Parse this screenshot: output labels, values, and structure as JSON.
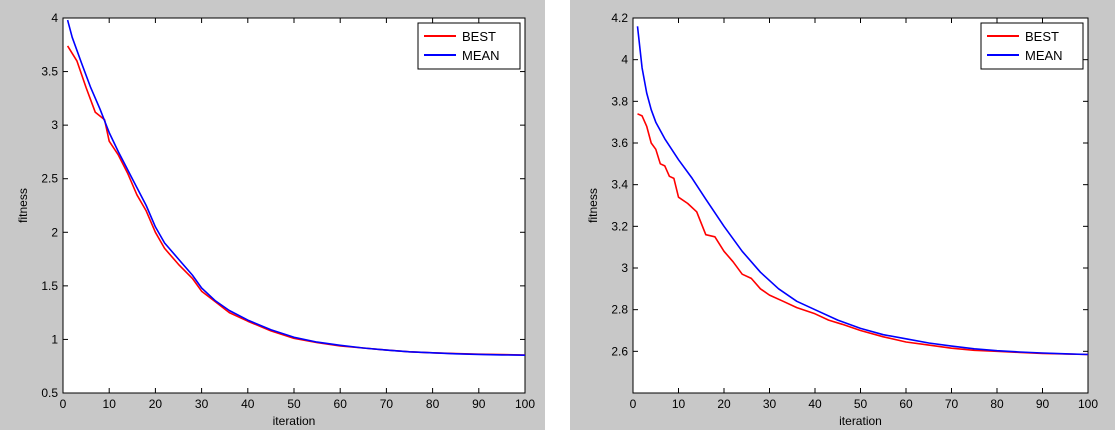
{
  "chart_data": [
    {
      "type": "line",
      "xlabel": "iteration",
      "ylabel": "fitness",
      "xlim": [
        0,
        100
      ],
      "ylim": [
        0.5,
        4
      ],
      "x_ticks": [
        0,
        10,
        20,
        30,
        40,
        50,
        60,
        70,
        80,
        90,
        100
      ],
      "y_ticks": [
        0.5,
        1,
        1.5,
        2,
        2.5,
        3,
        3.5,
        4
      ],
      "y_tick_labels": [
        "0.5",
        "1",
        "1.5",
        "2",
        "2.5",
        "3",
        "3.5",
        "4"
      ],
      "grid": false,
      "legend_position": "top-right",
      "series": [
        {
          "name": "BEST",
          "color": "#ff0000",
          "x": [
            1,
            3,
            5,
            7,
            9,
            10,
            12,
            14,
            16,
            18,
            20,
            22,
            25,
            28,
            30,
            33,
            36,
            40,
            45,
            50,
            55,
            60,
            65,
            70,
            75,
            80,
            85,
            90,
            95,
            100
          ],
          "y": [
            3.74,
            3.6,
            3.35,
            3.12,
            3.05,
            2.85,
            2.72,
            2.55,
            2.35,
            2.2,
            2.0,
            1.85,
            1.7,
            1.57,
            1.45,
            1.35,
            1.25,
            1.17,
            1.08,
            1.01,
            0.97,
            0.94,
            0.92,
            0.9,
            0.885,
            0.875,
            0.868,
            0.862,
            0.858,
            0.855
          ]
        },
        {
          "name": "MEAN",
          "color": "#0000ff",
          "x": [
            1,
            2,
            4,
            6,
            8,
            10,
            12,
            15,
            18,
            20,
            22,
            25,
            28,
            30,
            33,
            36,
            40,
            45,
            50,
            55,
            60,
            65,
            70,
            75,
            80,
            85,
            90,
            95,
            100
          ],
          "y": [
            3.98,
            3.82,
            3.58,
            3.35,
            3.15,
            2.93,
            2.75,
            2.5,
            2.25,
            2.05,
            1.9,
            1.75,
            1.6,
            1.48,
            1.36,
            1.27,
            1.18,
            1.09,
            1.02,
            0.975,
            0.945,
            0.92,
            0.9,
            0.885,
            0.875,
            0.866,
            0.86,
            0.856,
            0.853
          ]
        }
      ]
    },
    {
      "type": "line",
      "xlabel": "iteration",
      "ylabel": "fitness",
      "xlim": [
        0,
        100
      ],
      "ylim": [
        2.4,
        4.2
      ],
      "x_ticks": [
        0,
        10,
        20,
        30,
        40,
        50,
        60,
        70,
        80,
        90,
        100
      ],
      "y_ticks": [
        2.6,
        2.8,
        3,
        3.2,
        3.4,
        3.6,
        3.8,
        4,
        4.2
      ],
      "y_tick_labels": [
        "2.6",
        "2.8",
        "3",
        "3.2",
        "3.4",
        "3.6",
        "3.8",
        "4",
        "4.2"
      ],
      "grid": false,
      "legend_position": "top-right",
      "series": [
        {
          "name": "BEST",
          "color": "#ff0000",
          "x": [
            1,
            2,
            3,
            4,
            5,
            6,
            7,
            8,
            9,
            10,
            12,
            14,
            16,
            18,
            20,
            22,
            24,
            26,
            28,
            30,
            33,
            36,
            40,
            43,
            46,
            50,
            55,
            60,
            65,
            70,
            75,
            80,
            85,
            90,
            95,
            100
          ],
          "y": [
            3.74,
            3.73,
            3.68,
            3.6,
            3.57,
            3.5,
            3.49,
            3.44,
            3.43,
            3.34,
            3.31,
            3.27,
            3.16,
            3.15,
            3.08,
            3.03,
            2.97,
            2.95,
            2.9,
            2.87,
            2.84,
            2.81,
            2.78,
            2.75,
            2.73,
            2.7,
            2.67,
            2.645,
            2.63,
            2.615,
            2.605,
            2.6,
            2.595,
            2.59,
            2.587,
            2.585
          ]
        },
        {
          "name": "MEAN",
          "color": "#0000ff",
          "x": [
            1,
            2,
            3,
            4,
            5,
            7,
            10,
            13,
            16,
            20,
            24,
            28,
            32,
            36,
            40,
            45,
            50,
            55,
            60,
            65,
            70,
            75,
            80,
            85,
            90,
            95,
            100
          ],
          "y": [
            4.16,
            3.96,
            3.84,
            3.76,
            3.7,
            3.62,
            3.52,
            3.43,
            3.33,
            3.2,
            3.08,
            2.98,
            2.9,
            2.84,
            2.8,
            2.75,
            2.71,
            2.68,
            2.66,
            2.64,
            2.625,
            2.612,
            2.603,
            2.597,
            2.592,
            2.588,
            2.585
          ]
        }
      ]
    }
  ]
}
